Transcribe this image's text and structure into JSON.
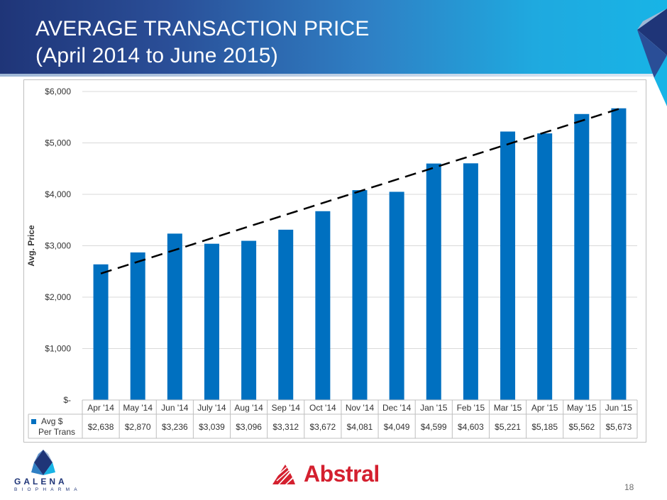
{
  "slide": {
    "title_line1": "AVERAGE TRANSACTION PRICE",
    "title_line2": "(April 2014 to June 2015)",
    "page_number": "18",
    "brand_left_word": "GALENA",
    "brand_left_sub": "BIOPHARMA",
    "brand_center": "Abstral"
  },
  "chart_data": {
    "type": "bar",
    "categories": [
      "Apr '14",
      "May '14",
      "Jun '14",
      "July '14",
      "Aug '14",
      "Sep '14",
      "Oct '14",
      "Nov '14",
      "Dec '14",
      "Jan '15",
      "Feb '15",
      "Mar '15",
      "Apr '15",
      "May '15",
      "Jun '15"
    ],
    "series": [
      {
        "name": "Avg $ Per Trans",
        "legend_lines": [
          "Avg $",
          "Per Trans"
        ],
        "values": [
          2638,
          2870,
          3236,
          3039,
          3096,
          3312,
          3672,
          4081,
          4049,
          4599,
          4603,
          5221,
          5185,
          5562,
          5673
        ],
        "value_labels": [
          "$2,638",
          "$2,870",
          "$3,236",
          "$3,039",
          "$3,096",
          "$3,312",
          "$3,672",
          "$4,081",
          "$4,049",
          "$4,599",
          "$4,603",
          "$5,221",
          "$5,185",
          "$5,562",
          "$5,673"
        ],
        "color": "#0070c0"
      }
    ],
    "trendline": {
      "style": "dashed",
      "color": "#000000",
      "start": 2460,
      "end": 5660
    },
    "ylabel": "Avg. Price",
    "xlabel": "",
    "ylim": [
      0,
      6000
    ],
    "yticks": [
      0,
      1000,
      2000,
      3000,
      4000,
      5000,
      6000
    ],
    "ytick_labels": [
      "$-",
      "$1,000",
      "$2,000",
      "$3,000",
      "$4,000",
      "$5,000",
      "$6,000"
    ],
    "grid": true,
    "data_table": true
  }
}
